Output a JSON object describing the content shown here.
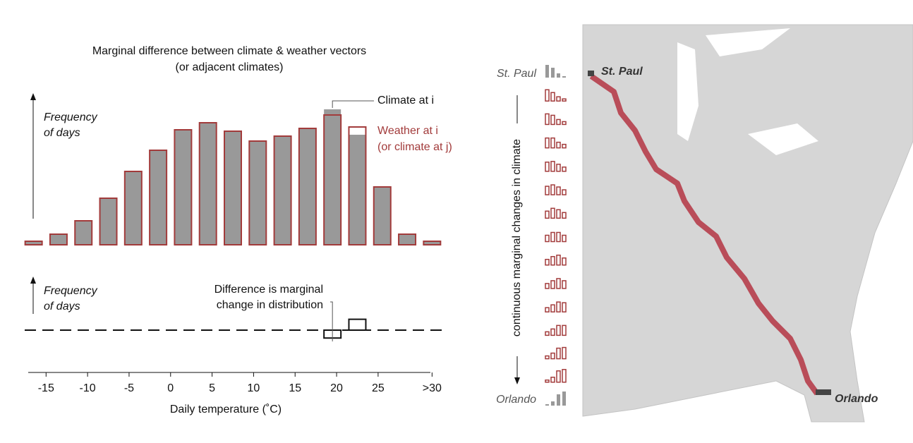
{
  "chart_data": {
    "type": "bar",
    "title": [
      "Marginal difference between climate & weather vectors",
      "(or adjacent climates)"
    ],
    "y_label": [
      "Frequency",
      "of days"
    ],
    "x_label": "Daily temperature (˚C)",
    "x": [
      -16.5,
      -13.5,
      -10.5,
      -7.5,
      -4.5,
      -1.5,
      1.5,
      4.5,
      7.5,
      10.5,
      13.5,
      16.5,
      19.5,
      22.5,
      25.5,
      28.5,
      31.5
    ],
    "series": [
      {
        "name": "Climate at i",
        "color": "#999999",
        "values": [
          5,
          15,
          34,
          66,
          104,
          134,
          163,
          173,
          161,
          147,
          154,
          165,
          192,
          156,
          82,
          15,
          5
        ]
      },
      {
        "name": "Weather at i",
        "subtitle": "(or climate at j)",
        "color": "#a23b3b",
        "values": [
          5,
          15,
          34,
          66,
          104,
          134,
          163,
          173,
          161,
          147,
          154,
          165,
          184,
          167,
          82,
          15,
          5
        ]
      }
    ],
    "xlim": [
      -18,
      33
    ],
    "xticks": [
      -15,
      -10,
      -5,
      0,
      5,
      10,
      15,
      20,
      25,
      {
        "value": 31.5,
        "label": ">30"
      }
    ],
    "ylim": [
      0,
      200
    ],
    "difference": {
      "y_label": [
        "Frequency",
        "of days"
      ],
      "annotation": [
        "Difference is marginal",
        "change in distribution"
      ]
    }
  },
  "gradient": {
    "label": "continuous marginal changes in climate",
    "start": "St. Paul",
    "end": "Orlando",
    "end_color": "#999999",
    "color": "#a23b3b",
    "rows": [
      [
        18,
        14,
        6,
        2
      ],
      [
        16,
        12,
        6,
        3
      ],
      [
        15,
        13,
        7,
        4
      ],
      [
        14,
        14,
        8,
        5
      ],
      [
        13,
        14,
        10,
        6
      ],
      [
        12,
        14,
        11,
        7
      ],
      [
        10,
        14,
        12,
        8
      ],
      [
        9,
        13,
        13,
        9
      ],
      [
        8,
        12,
        14,
        10
      ],
      [
        7,
        11,
        14,
        11
      ],
      [
        6,
        10,
        14,
        13
      ],
      [
        5,
        9,
        14,
        14
      ],
      [
        4,
        8,
        15,
        16
      ],
      [
        3,
        7,
        16,
        18
      ],
      [
        2,
        6,
        16,
        20
      ]
    ]
  },
  "map": {
    "start": "St. Paul",
    "end": "Orlando"
  }
}
